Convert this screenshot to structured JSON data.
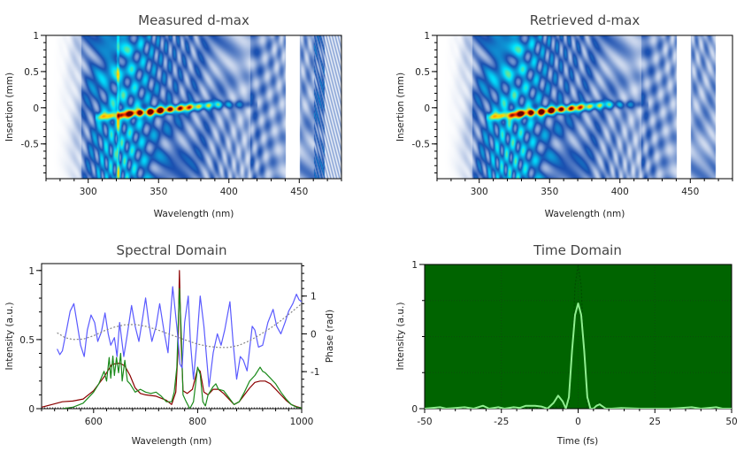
{
  "colors": {
    "axis": "#000000",
    "measured_spectrum": "#8b0000",
    "retrieved_spectrum": "#1a8a1a",
    "phase": "#5a5aff",
    "phase_fit": "#888888",
    "time_bg": "#006400",
    "time_pulse": "#90ee90",
    "time_pulse_ref": "#004d00"
  },
  "chart_data": [
    {
      "type": "heatmap",
      "title": "Measured d-max",
      "xlabel": "Wavelength (nm)",
      "ylabel": "Insertion (mm)",
      "xlim": [
        270,
        480
      ],
      "ylim": [
        -0.98,
        1
      ],
      "xticks": [
        "300",
        "350",
        "400",
        "450"
      ],
      "xtick_values": [
        300,
        350,
        400,
        450
      ],
      "yticks": [
        "1",
        "0.5",
        "0",
        "-0.5"
      ],
      "ytick_values": [
        1,
        0.5,
        0,
        -0.5
      ],
      "colormap": [
        "#ffffff",
        "#1a4fb0",
        "#00e5ff",
        "#ffe000",
        "#ff3000",
        "#600000"
      ]
    },
    {
      "type": "heatmap",
      "title": "Retrieved d-max",
      "xlabel": "Wavelength (nm)",
      "ylabel": "Insertion (mm)",
      "xlim": [
        270,
        480
      ],
      "ylim": [
        -0.98,
        1
      ],
      "xticks": [
        "300",
        "350",
        "400",
        "450"
      ],
      "xtick_values": [
        300,
        350,
        400,
        450
      ],
      "yticks": [
        "1",
        "0.5",
        "0",
        "-0.5"
      ],
      "ytick_values": [
        1,
        0.5,
        0,
        -0.5
      ],
      "colormap": [
        "#ffffff",
        "#1a4fb0",
        "#00e5ff",
        "#ffe000",
        "#ff3000",
        "#600000"
      ]
    },
    {
      "type": "line",
      "title": "Spectral Domain",
      "xlabel": "Wavelength (nm)",
      "ylabel": "Intensity (a.u.)",
      "y2label": "Phase (rad)",
      "xlim": [
        500,
        1000
      ],
      "ylim": [
        0,
        1.05
      ],
      "y2lim": [
        -1.98,
        1.86
      ],
      "xticks": [
        "600",
        "800",
        "1000"
      ],
      "xtick_values": [
        600,
        800,
        1000
      ],
      "yticks": [
        "1",
        "0.5",
        "0"
      ],
      "ytick_values": [
        1,
        0.5,
        0
      ],
      "y2ticks": [
        "1",
        "0",
        "-1"
      ],
      "y2tick_values": [
        1,
        0,
        -1
      ],
      "series": [
        {
          "name": "Measured spectrum",
          "axis": "left",
          "color": "#8b0000",
          "x": [
            500,
            520,
            540,
            560,
            580,
            600,
            620,
            635,
            650,
            660,
            670,
            680,
            690,
            700,
            720,
            740,
            750,
            758,
            762,
            765,
            768,
            772,
            780,
            790,
            800,
            805,
            812,
            820,
            830,
            840,
            850,
            860,
            870,
            880,
            890,
            900,
            910,
            920,
            930,
            940,
            950,
            960,
            970,
            980,
            990,
            1000
          ],
          "y": [
            0.01,
            0.03,
            0.05,
            0.055,
            0.07,
            0.13,
            0.23,
            0.32,
            0.33,
            0.31,
            0.24,
            0.15,
            0.11,
            0.1,
            0.09,
            0.06,
            0.03,
            0.12,
            0.4,
            1.0,
            0.5,
            0.13,
            0.11,
            0.14,
            0.29,
            0.27,
            0.12,
            0.1,
            0.14,
            0.14,
            0.11,
            0.07,
            0.03,
            0.05,
            0.1,
            0.15,
            0.19,
            0.2,
            0.2,
            0.18,
            0.14,
            0.1,
            0.06,
            0.03,
            0.015,
            0.005
          ]
        },
        {
          "name": "Retrieved spectrum",
          "axis": "left",
          "color": "#1a8a1a",
          "x": [
            540,
            560,
            580,
            600,
            610,
            620,
            625,
            630,
            633,
            637,
            640,
            644,
            648,
            652,
            655,
            660,
            665,
            670,
            680,
            690,
            700,
            710,
            720,
            730,
            740,
            750,
            755,
            760,
            765,
            768,
            772,
            778,
            785,
            792,
            800,
            805,
            810,
            815,
            820,
            830,
            835,
            840,
            850,
            860,
            870,
            880,
            890,
            900,
            910,
            920,
            925,
            930,
            940,
            950,
            960,
            970,
            980,
            990,
            1000
          ],
          "y": [
            0.0,
            0.01,
            0.04,
            0.12,
            0.18,
            0.27,
            0.2,
            0.37,
            0.22,
            0.38,
            0.24,
            0.37,
            0.26,
            0.4,
            0.2,
            0.35,
            0.2,
            0.18,
            0.12,
            0.14,
            0.12,
            0.11,
            0.12,
            0.09,
            0.05,
            0.05,
            0.12,
            0.3,
            0.87,
            0.6,
            0.1,
            0.05,
            0.0,
            0.05,
            0.3,
            0.25,
            0.05,
            0.02,
            0.1,
            0.16,
            0.18,
            0.14,
            0.13,
            0.08,
            0.03,
            0.05,
            0.12,
            0.2,
            0.24,
            0.3,
            0.27,
            0.26,
            0.22,
            0.18,
            0.12,
            0.07,
            0.03,
            0.01,
            0.005
          ]
        },
        {
          "name": "Phase",
          "axis": "right",
          "color": "#5a5aff",
          "x": [
            530,
            535,
            540,
            548,
            555,
            562,
            568,
            575,
            582,
            588,
            595,
            602,
            608,
            615,
            622,
            628,
            633,
            640,
            645,
            650,
            658,
            665,
            673,
            680,
            687,
            694,
            700,
            706,
            712,
            720,
            727,
            735,
            743,
            748,
            752,
            757,
            762,
            766,
            770,
            775,
            782,
            786,
            792,
            798,
            805,
            812,
            822,
            830,
            838,
            845,
            852,
            862,
            868,
            875,
            882,
            888,
            895,
            900,
            905,
            910,
            917,
            925,
            935,
            945,
            952,
            960,
            968,
            975,
            983,
            990,
            995,
            1000
          ],
          "y": [
            -0.4,
            -0.55,
            -0.45,
            0.1,
            0.6,
            0.8,
            0.3,
            -0.3,
            -0.6,
            0.1,
            0.5,
            0.3,
            -0.2,
            0.05,
            0.55,
            0.0,
            -0.3,
            -0.1,
            -0.6,
            0.3,
            -0.6,
            0.0,
            0.75,
            0.2,
            -0.2,
            0.4,
            0.95,
            0.3,
            -0.2,
            0.2,
            0.8,
            0.1,
            -0.5,
            0.5,
            1.25,
            0.6,
            -0.1,
            -0.8,
            -0.9,
            0.3,
            1.0,
            -0.2,
            -1.2,
            -0.3,
            1.0,
            0.2,
            -1.4,
            -0.5,
            0.0,
            -0.3,
            0.1,
            0.85,
            -0.2,
            -1.2,
            -0.6,
            -0.7,
            -0.98,
            -0.4,
            0.2,
            0.1,
            -0.35,
            -0.3,
            0.3,
            0.65,
            0.2,
            0.0,
            0.3,
            0.6,
            0.8,
            1.05,
            0.9,
            0.85
          ]
        },
        {
          "name": "Phase fit",
          "axis": "right",
          "color": "#888888",
          "dash": true,
          "x": [
            530,
            545,
            560,
            580,
            600,
            620,
            640,
            660,
            680,
            700,
            720,
            740,
            760,
            780,
            800,
            820,
            840,
            860,
            880,
            900,
            920,
            940,
            960,
            980,
            1000
          ],
          "y": [
            0.03,
            -0.1,
            -0.15,
            -0.14,
            -0.05,
            0.08,
            0.18,
            0.24,
            0.25,
            0.2,
            0.12,
            0.02,
            -0.08,
            -0.18,
            -0.27,
            -0.33,
            -0.36,
            -0.36,
            -0.3,
            -0.18,
            -0.02,
            0.15,
            0.35,
            0.57,
            0.8
          ]
        }
      ]
    },
    {
      "type": "line",
      "title": "Time Domain",
      "xlabel": "Time (fs)",
      "ylabel": "Intensity (a.u.)",
      "xlim": [
        -50,
        50
      ],
      "ylim": [
        0,
        1
      ],
      "xticks": [
        "-50",
        "-25",
        "0",
        "25",
        "50"
      ],
      "xtick_values": [
        -50,
        -25,
        0,
        25,
        50
      ],
      "yticks": [
        "1",
        "0"
      ],
      "ytick_values": [
        1,
        0
      ],
      "series": [
        {
          "name": "Reference pulse",
          "color": "#004d00",
          "dash": true,
          "x": [
            -50,
            -10,
            -5,
            -3,
            -2,
            -1,
            0,
            1,
            2,
            3,
            5,
            7,
            9,
            10,
            50
          ],
          "y": [
            0,
            0,
            0.02,
            0.0,
            0.35,
            0.85,
            1.0,
            0.85,
            0.35,
            0.0,
            0.0,
            0.05,
            0.0,
            0,
            0
          ]
        },
        {
          "name": "Retrieved pulse",
          "color": "#90ee90",
          "x": [
            -50,
            -45,
            -43,
            -40,
            -37,
            -34,
            -31,
            -29,
            -26,
            -24,
            -21,
            -19,
            -17,
            -14,
            -12,
            -10,
            -8,
            -6.5,
            -5,
            -4,
            -3,
            -2,
            -1,
            0,
            1,
            2,
            3,
            4,
            5,
            6,
            7,
            8,
            9,
            11,
            14,
            20,
            30,
            37,
            40,
            45,
            47,
            50
          ],
          "y": [
            0,
            0.01,
            0.0,
            0.005,
            0.01,
            0.0,
            0.02,
            0.0,
            0.01,
            0.0,
            0.01,
            0.005,
            0.02,
            0.02,
            0.015,
            0.0,
            0.04,
            0.09,
            0.05,
            0.0,
            0.08,
            0.4,
            0.65,
            0.73,
            0.65,
            0.4,
            0.08,
            0.0,
            0.0,
            0.02,
            0.03,
            0.015,
            0.0,
            0.0,
            0.005,
            0.0,
            0.0,
            0.01,
            0.0,
            0.01,
            0.0,
            0.0
          ]
        }
      ]
    }
  ]
}
